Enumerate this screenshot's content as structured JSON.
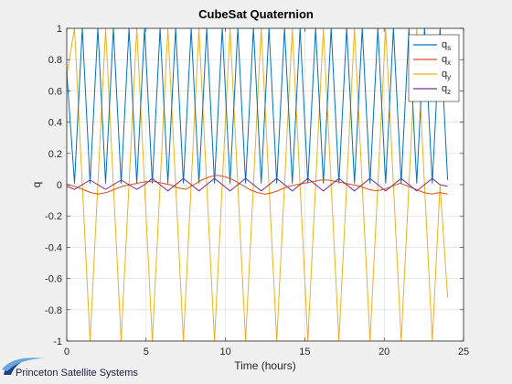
{
  "chart_data": {
    "type": "line",
    "title": "CubeSat Quaternion",
    "xlabel": "Time (hours)",
    "ylabel": "q",
    "xlim": [
      0,
      25
    ],
    "ylim": [
      -1,
      1
    ],
    "xticks": [
      0,
      5,
      10,
      15,
      20,
      25
    ],
    "yticks": [
      -1,
      -0.8,
      -0.6,
      -0.4,
      -0.2,
      0,
      0.2,
      0.4,
      0.6,
      0.8,
      1
    ],
    "xtick_labels": [
      "0",
      "5",
      "10",
      "15",
      "20",
      "25"
    ],
    "ytick_labels": [
      "-1",
      "-0.8",
      "-0.6",
      "-0.4",
      "-0.2",
      "0",
      "0.2",
      "0.4",
      "0.6",
      "0.8",
      "1"
    ],
    "grid": true,
    "legend_position": "top-right",
    "series": [
      {
        "name": "q",
        "sub": "s",
        "color": "#0072BD",
        "x": [
          0,
          0.49,
          0.98,
          1.47,
          1.96,
          2.45,
          2.94,
          3.43,
          3.92,
          4.41,
          4.9,
          5.39,
          5.88,
          6.37,
          6.86,
          7.35,
          7.84,
          8.33,
          8.82,
          9.31,
          9.8,
          10.29,
          10.78,
          11.27,
          11.76,
          12.25,
          12.74,
          13.23,
          13.72,
          14.21,
          14.7,
          15.19,
          15.68,
          16.17,
          16.66,
          17.15,
          17.64,
          18.13,
          18.62,
          19.11,
          19.6,
          20.09,
          20.58,
          21.07,
          21.56,
          22.05,
          22.54,
          23.03,
          23.52,
          24.0
        ],
        "y": [
          0.72,
          0.01,
          1.0,
          0.01,
          1.0,
          0.01,
          1.0,
          0.01,
          1.0,
          0.01,
          1.0,
          0.01,
          1.0,
          0.01,
          1.0,
          0.01,
          1.0,
          0.01,
          1.0,
          0.01,
          1.0,
          0.01,
          1.0,
          0.01,
          1.0,
          0.01,
          1.0,
          0.01,
          1.0,
          0.01,
          1.0,
          0.01,
          1.0,
          0.01,
          1.0,
          0.01,
          1.0,
          0.01,
          1.0,
          0.01,
          1.0,
          0.01,
          1.0,
          0.01,
          1.0,
          0.01,
          1.0,
          0.01,
          1.0,
          0.03
        ]
      },
      {
        "name": "q",
        "sub": "x",
        "color": "#D95319",
        "x": [
          0,
          0.5,
          1.0,
          1.5,
          2.0,
          2.5,
          3.0,
          3.5,
          4.0,
          4.5,
          5.0,
          5.5,
          6.0,
          6.5,
          7.0,
          7.5,
          8.0,
          8.5,
          9.0,
          9.5,
          10.0,
          10.5,
          11.0,
          11.5,
          12.0,
          12.5,
          13.0,
          13.5,
          14.0,
          14.5,
          15.0,
          15.5,
          16.0,
          16.5,
          17.0,
          17.5,
          18.0,
          18.5,
          19.0,
          19.5,
          20.0,
          20.5,
          21.0,
          21.5,
          22.0,
          22.5,
          23.0,
          23.5,
          24.0
        ],
        "y": [
          0.0,
          -0.01,
          -0.03,
          -0.05,
          -0.06,
          -0.05,
          -0.03,
          -0.01,
          0.0,
          0.01,
          0.02,
          0.02,
          0.01,
          0.0,
          -0.02,
          -0.03,
          0.0,
          0.03,
          0.05,
          0.06,
          0.05,
          0.03,
          0.0,
          -0.03,
          -0.05,
          -0.06,
          -0.05,
          -0.03,
          -0.01,
          0.0,
          0.01,
          0.02,
          0.03,
          0.03,
          0.02,
          0.01,
          0.0,
          -0.01,
          -0.03,
          -0.04,
          -0.03,
          -0.01,
          0.01,
          -0.01,
          -0.03,
          -0.05,
          -0.06,
          -0.05,
          -0.06
        ]
      },
      {
        "name": "q",
        "sub": "y",
        "color": "#EDB120",
        "x": [
          0,
          0.49,
          0.98,
          1.47,
          1.96,
          2.45,
          2.94,
          3.43,
          3.92,
          4.41,
          4.9,
          5.39,
          5.88,
          6.37,
          6.86,
          7.35,
          7.84,
          8.33,
          8.82,
          9.31,
          9.8,
          10.29,
          10.78,
          11.27,
          11.76,
          12.25,
          12.74,
          13.23,
          13.72,
          14.21,
          14.7,
          15.19,
          15.68,
          16.17,
          16.66,
          17.15,
          17.64,
          18.13,
          18.62,
          19.11,
          19.6,
          20.09,
          20.58,
          21.07,
          21.56,
          22.05,
          22.54,
          23.03,
          23.52,
          24.0
        ],
        "y": [
          0.7,
          1.0,
          0.0,
          -1.0,
          0.0,
          1.0,
          0.0,
          -1.0,
          0.0,
          1.0,
          0.0,
          -1.0,
          0.0,
          1.0,
          0.0,
          -1.0,
          0.0,
          1.0,
          0.0,
          -1.0,
          0.0,
          1.0,
          0.0,
          -1.0,
          0.0,
          1.0,
          0.0,
          -1.0,
          0.0,
          1.0,
          0.0,
          -1.0,
          0.0,
          1.0,
          0.0,
          -1.0,
          0.0,
          1.0,
          0.0,
          -1.0,
          0.0,
          1.0,
          0.0,
          -1.0,
          0.0,
          1.0,
          0.0,
          -1.0,
          0.0,
          -0.72
        ]
      },
      {
        "name": "q",
        "sub": "z",
        "color": "#7E2F8E",
        "x": [
          0,
          0.49,
          0.98,
          1.47,
          1.96,
          2.45,
          2.94,
          3.43,
          3.92,
          4.41,
          4.9,
          5.39,
          5.88,
          6.37,
          6.86,
          7.35,
          7.84,
          8.33,
          8.82,
          9.31,
          9.8,
          10.29,
          10.78,
          11.27,
          11.76,
          12.25,
          12.74,
          13.23,
          13.72,
          14.21,
          14.7,
          15.19,
          15.68,
          16.17,
          16.66,
          17.15,
          17.64,
          18.13,
          18.62,
          19.11,
          19.6,
          20.09,
          20.58,
          21.07,
          21.56,
          22.05,
          22.54,
          23.03,
          23.52,
          24.0
        ],
        "y": [
          -0.01,
          -0.03,
          0.0,
          0.03,
          0.0,
          -0.03,
          0.0,
          0.03,
          0.0,
          -0.03,
          0.0,
          0.04,
          0.0,
          -0.04,
          0.0,
          0.04,
          0.0,
          -0.04,
          0.0,
          0.04,
          0.0,
          -0.04,
          0.0,
          0.04,
          0.0,
          -0.04,
          0.0,
          0.04,
          0.0,
          -0.04,
          0.0,
          0.04,
          0.0,
          -0.04,
          0.0,
          0.04,
          0.0,
          -0.04,
          0.0,
          0.04,
          0.0,
          -0.04,
          0.0,
          0.04,
          0.0,
          -0.04,
          0.0,
          0.04,
          0.0,
          -0.01
        ]
      }
    ]
  },
  "logo": {
    "text": "Princeton Satellite Systems",
    "color": "#1a3f8f"
  }
}
